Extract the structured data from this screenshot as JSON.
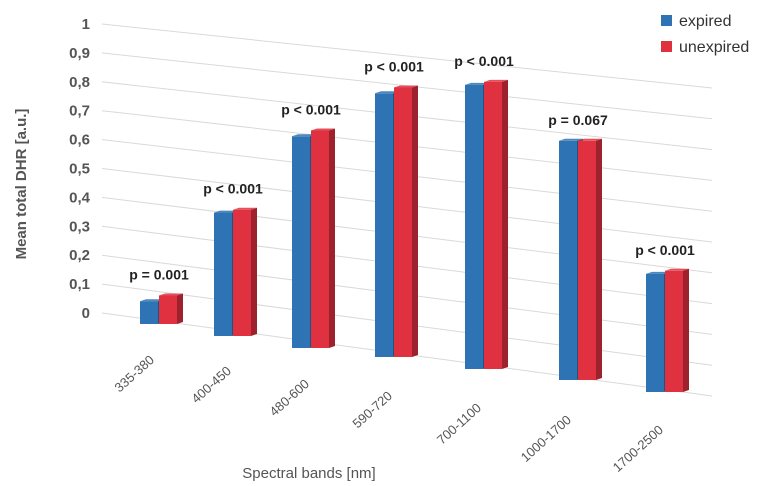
{
  "chart_data": {
    "type": "bar",
    "ylabel": "Mean total DHR [a.u.]",
    "xlabel": "Spectral bands [nm]",
    "ylim": [
      0,
      1
    ],
    "yticks": [
      "0",
      "0,1",
      "0,2",
      "0,3",
      "0,4",
      "0,5",
      "0,6",
      "0,7",
      "0,8",
      "0,9",
      "1"
    ],
    "categories": [
      "335-380",
      "400-450",
      "480-600",
      "590-720",
      "700-1100",
      "1000-1700",
      "1700-2500"
    ],
    "series": [
      {
        "name": "expired",
        "color": "#2e74b5",
        "values": [
          0.08,
          0.43,
          0.73,
          0.9,
          0.96,
          0.8,
          0.39
        ]
      },
      {
        "name": "unexpired",
        "color": "#e03140",
        "values": [
          0.1,
          0.44,
          0.75,
          0.92,
          0.97,
          0.8,
          0.4
        ]
      }
    ],
    "annotations": [
      "p = 0.001",
      "p < 0.001",
      "p < 0.001",
      "p < 0.001",
      "p < 0.001",
      "p = 0.067",
      "p < 0.001"
    ],
    "grid": true,
    "legend": "top-right"
  }
}
